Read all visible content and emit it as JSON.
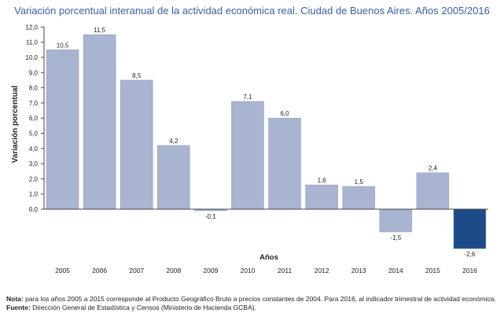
{
  "chart_data": {
    "type": "bar",
    "title": "Variación porcentual interanual de la actividad económica real. Ciudad de Buenos Aires. Años 2005/2016",
    "xlabel": "Años",
    "ylabel": "Variación porcentual",
    "categories": [
      "2005",
      "2006",
      "2007",
      "2008",
      "2009",
      "2010",
      "2011",
      "2012",
      "2013",
      "2014",
      "2015",
      "2016"
    ],
    "values": [
      10.5,
      11.5,
      8.5,
      4.2,
      -0.1,
      7.1,
      6.0,
      1.6,
      1.5,
      -1.5,
      2.4,
      -2.6
    ],
    "value_labels": [
      "10,5",
      "11,5",
      "8,5",
      "4,2",
      "-0,1",
      "7,1",
      "6,0",
      "1,6",
      "1,5",
      "-1,5",
      "2,4",
      "-2,6"
    ],
    "ylim": [
      0,
      12
    ],
    "yticks": [
      0,
      1,
      2,
      3,
      4,
      5,
      6,
      7,
      8,
      9,
      10,
      11,
      12
    ],
    "ytick_labels": [
      "0,0",
      "1,0",
      "2,0",
      "3,0",
      "4,0",
      "5,0",
      "6,0",
      "7,0",
      "8,0",
      "9,0",
      "10,0",
      "11,0",
      "12,0"
    ],
    "grid": false,
    "legend": "none",
    "colors": {
      "default": "#a9b4d0",
      "highlight": "#1c4b87",
      "axis": "#444444",
      "title": "#3a5f9f"
    },
    "highlight_index": 11
  },
  "notes": {
    "nota_label": "Nota:",
    "nota_text": " para los años 2005 a 2015 corresponde al Producto Geográfico Bruto a precios constantes de 2004. Para 2016, al indicador trimestral de actividad económica.",
    "fuente_label": "Fuente:",
    "fuente_text": " Dirección General de Estadística y Censos (Ministerio de Hacienda GCBA)."
  }
}
